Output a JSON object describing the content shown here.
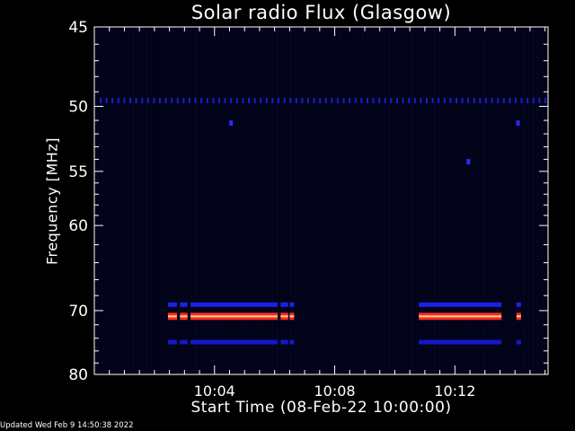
{
  "chart_data": {
    "type": "heatmap",
    "title": "Solar radio Flux (Glasgow)",
    "xlabel": "Start Time (08-Feb-22 10:00:00)",
    "ylabel": "Frequency [MHz]",
    "x_unit": "minutes after 10:00:00",
    "xlim": [
      0,
      15.1
    ],
    "ylim": [
      45,
      80
    ],
    "y_scale": "reciprocal",
    "x_ticks": [
      {
        "value": 4,
        "label": "10:04"
      },
      {
        "value": 8,
        "label": "10:08"
      },
      {
        "value": 12,
        "label": "10:12"
      }
    ],
    "y_ticks": [
      {
        "value": 45,
        "label": "45"
      },
      {
        "value": 50,
        "label": "50"
      },
      {
        "value": 55,
        "label": "55"
      },
      {
        "value": 60,
        "label": "60"
      },
      {
        "value": 70,
        "label": "70"
      },
      {
        "value": 80,
        "label": "80"
      }
    ],
    "y_minor_ticks": [
      46,
      47,
      48,
      49,
      51,
      52,
      53,
      54,
      56,
      57,
      58,
      59,
      62,
      64,
      66,
      68,
      72,
      74,
      76,
      78
    ],
    "x_minor_step": 0.5,
    "emission_bands": [
      {
        "freq_mhz": 69.2,
        "level": "medium",
        "color": "#1a22e6",
        "segments": [
          [
            2.45,
            2.75
          ],
          [
            2.85,
            3.1
          ],
          [
            3.2,
            6.1
          ],
          [
            6.2,
            6.45
          ],
          [
            6.5,
            6.65
          ],
          [
            10.8,
            13.55
          ],
          [
            14.05,
            14.2
          ]
        ]
      },
      {
        "freq_mhz": 70.8,
        "level": "high",
        "color": "#ff2a1a",
        "segments": [
          [
            2.45,
            2.75
          ],
          [
            2.85,
            3.1
          ],
          [
            3.2,
            6.1
          ],
          [
            6.2,
            6.45
          ],
          [
            6.5,
            6.65
          ],
          [
            10.8,
            13.55
          ],
          [
            14.05,
            14.2
          ]
        ]
      },
      {
        "freq_mhz": 74.6,
        "level": "low",
        "color": "#1616c8",
        "segments": [
          [
            2.45,
            2.75
          ],
          [
            2.85,
            3.1
          ],
          [
            3.2,
            6.1
          ],
          [
            6.2,
            6.45
          ],
          [
            6.5,
            6.65
          ],
          [
            10.8,
            13.55
          ],
          [
            14.05,
            14.2
          ]
        ]
      }
    ],
    "background_line": {
      "freq_mhz": 49.6,
      "color": "#1c1cd0"
    },
    "spots": [
      {
        "x": 4.55,
        "freq_mhz": 51.2,
        "color": "#2a2aff"
      },
      {
        "x": 12.45,
        "freq_mhz": 54.2,
        "color": "#2a2aff"
      },
      {
        "x": 14.1,
        "freq_mhz": 51.2,
        "color": "#2a2aff"
      }
    ],
    "colors": {
      "background": "#000000",
      "plot_background": "#020318",
      "axis": "#ffffff",
      "band_core": "#ffffff"
    }
  },
  "footer": {
    "updated": "Updated Wed Feb  9 14:50:38 2022"
  }
}
